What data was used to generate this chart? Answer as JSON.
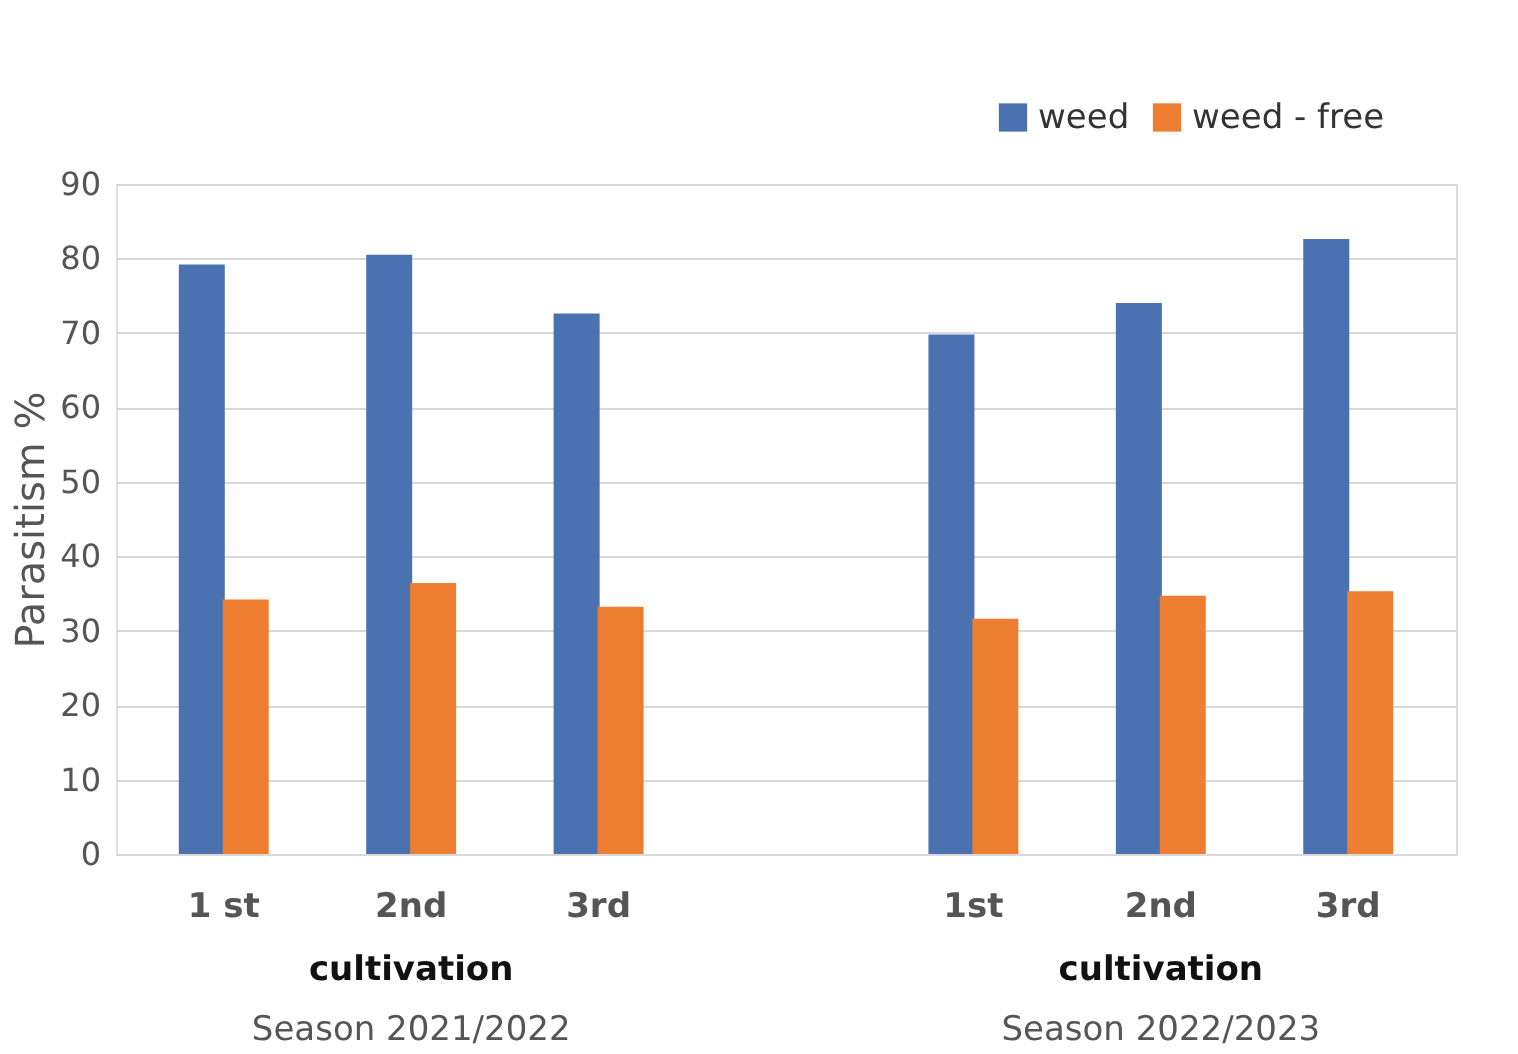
{
  "chart_data": {
    "type": "bar",
    "ylabel": "Parasitism %",
    "categories": [
      "1 st",
      "2nd",
      "3rd",
      null,
      "1st",
      "2nd",
      "3rd"
    ],
    "series": [
      {
        "name": "weed",
        "color": "#4a72b0",
        "values": [
          79.2,
          80.5,
          72.6,
          null,
          69.8,
          74.0,
          82.6
        ]
      },
      {
        "name": "weed - free",
        "color": "#ed7d31",
        "values": [
          34.2,
          36.4,
          33.2,
          null,
          31.6,
          34.7,
          35.3
        ]
      }
    ],
    "ylim": [
      0,
      90
    ],
    "yticks": [
      0,
      10,
      20,
      30,
      40,
      50,
      60,
      70,
      80,
      90
    ],
    "grid": "y",
    "legend": "top right",
    "annotations": [
      "cultivation",
      "Season 2021/2022",
      "cultivation",
      "Season 2022/2023"
    ]
  }
}
